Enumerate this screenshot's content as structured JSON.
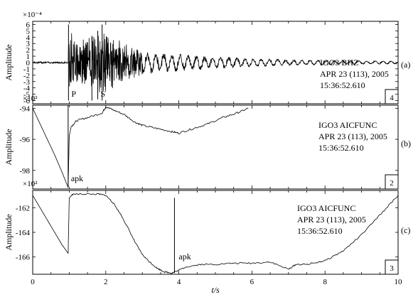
{
  "chart_data": [
    {
      "type": "line",
      "panel_label": "(a)",
      "scale_label": "×10⁻⁴",
      "ylabel": "Amplitude",
      "ylim": [
        -6.5,
        6.5
      ],
      "yticks": [
        6,
        5,
        4,
        3,
        2,
        1,
        0,
        -1,
        -2,
        -3,
        -4,
        -5,
        -6
      ],
      "info_lines": [
        "IGO3 BHZ",
        "APR 23 (113), 2005",
        "15:36:52.610"
      ],
      "page_number": "4",
      "markers": [
        {
          "label": "P",
          "x": 0.98
        },
        {
          "label": "S",
          "x": 1.78
        },
        {
          "label": "",
          "x": 1.62
        }
      ],
      "envelope": {
        "x": [
          0,
          0.97,
          0.98,
          1.2,
          1.6,
          1.9,
          2.1,
          2.5,
          3.0,
          3.5,
          4.0,
          5.0,
          6.0,
          7.0,
          8.0,
          9.0,
          10.0
        ],
        "y": [
          0.2,
          0.2,
          6.0,
          3.0,
          4.5,
          5.0,
          4.5,
          3.0,
          2.0,
          1.6,
          1.4,
          1.0,
          0.7,
          0.5,
          0.4,
          0.3,
          0.25
        ]
      }
    },
    {
      "type": "line",
      "panel_label": "(b)",
      "scale_label": "×10²",
      "ylabel": "Amplitude",
      "ylim": [
        -99.2,
        -93.8
      ],
      "yticks": [
        -94,
        -96,
        -98
      ],
      "info_lines": [
        "IGO3 AICFUNC",
        "APR 23 (113), 2005",
        "15:36:52.610"
      ],
      "page_number": "2",
      "markers": [
        {
          "label": "apk",
          "x": 0.97
        }
      ],
      "x": [
        0,
        0.2,
        0.4,
        0.6,
        0.8,
        0.97,
        1.0,
        1.05,
        1.2,
        1.5,
        1.9,
        2.0,
        2.2,
        2.5,
        2.8,
        3.0,
        3.4,
        3.8,
        4.0,
        4.4,
        4.8,
        5.2,
        5.6,
        5.9
      ],
      "y": [
        -94.0,
        -95.0,
        -96.0,
        -97.0,
        -98.1,
        -99.1,
        -95.8,
        -95.2,
        -94.8,
        -94.6,
        -94.3,
        -93.9,
        -94.1,
        -94.4,
        -94.9,
        -95.1,
        -95.3,
        -95.5,
        -95.6,
        -95.3,
        -95.0,
        -94.6,
        -94.3,
        -94.0
      ]
    },
    {
      "type": "line",
      "panel_label": "(c)",
      "scale_label": "×10²",
      "ylabel": "Amplitude",
      "ylim": [
        -167.4,
        -160.6
      ],
      "yticks": [
        -162,
        -164,
        -166
      ],
      "info_lines": [
        "IGO3 AICFUNC",
        "APR 23 (113), 2005",
        "15:36:52.610"
      ],
      "page_number": "3",
      "markers": [
        {
          "label": "apk",
          "x": 3.88
        }
      ],
      "xlabel": "t/s",
      "xlim": [
        0,
        10
      ],
      "xticks": [
        0,
        2,
        4,
        6,
        8,
        10
      ],
      "x": [
        0,
        0.2,
        0.4,
        0.6,
        0.8,
        0.97,
        1.0,
        1.1,
        1.4,
        1.8,
        2.0,
        2.2,
        2.4,
        2.6,
        2.8,
        3.0,
        3.2,
        3.4,
        3.6,
        3.8,
        3.9,
        4.2,
        4.6,
        5.0,
        5.5,
        6.0,
        6.5,
        7.0,
        7.2,
        7.5,
        8.0,
        8.5,
        9.0,
        9.5,
        10.0
      ],
      "y": [
        -161.0,
        -162.0,
        -163.0,
        -164.0,
        -165.0,
        -165.7,
        -161.2,
        -160.9,
        -160.9,
        -160.9,
        -161.0,
        -161.6,
        -162.5,
        -163.6,
        -164.8,
        -165.8,
        -166.4,
        -166.9,
        -167.2,
        -167.3,
        -167.2,
        -166.8,
        -166.6,
        -166.6,
        -166.5,
        -166.5,
        -166.4,
        -167.0,
        -166.6,
        -166.6,
        -166.3,
        -165.5,
        -164.2,
        -162.6,
        -161.0
      ]
    }
  ]
}
